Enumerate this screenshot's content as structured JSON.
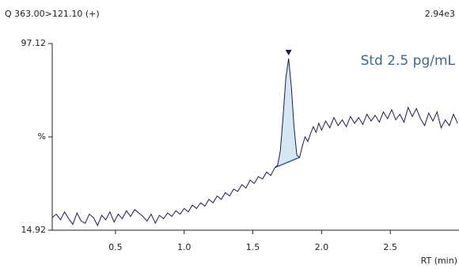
{
  "chart_data": {
    "type": "line",
    "title": "Q 363.00>121.10 (+)",
    "scale_label": "2.94e3",
    "annotation": "Std 2.5 pg/mL",
    "xlabel": "RT (min)",
    "color": "#1c1c4c",
    "peak": {
      "start": 1.66,
      "apex": 1.76,
      "end": 1.84,
      "fill": "#d4e8f4",
      "baseline_color": "#2b3fbf"
    },
    "xlim": [
      0.04,
      3.0
    ],
    "xticks": [
      0.5,
      {
        "value": 1.0,
        "label": "1.0"
      },
      1.5,
      {
        "value": 2.0,
        "label": "2.0"
      },
      2.5
    ],
    "ylim": [
      14.92,
      97.12
    ],
    "yticks": [
      14.92,
      {
        "value": 56.02,
        "label": "%"
      },
      97.12
    ],
    "x": [
      0.04,
      0.07,
      0.1,
      0.13,
      0.16,
      0.19,
      0.22,
      0.25,
      0.28,
      0.31,
      0.34,
      0.37,
      0.4,
      0.43,
      0.46,
      0.49,
      0.52,
      0.55,
      0.58,
      0.61,
      0.64,
      0.67,
      0.7,
      0.73,
      0.76,
      0.79,
      0.82,
      0.85,
      0.88,
      0.91,
      0.94,
      0.97,
      1.0,
      1.03,
      1.06,
      1.09,
      1.12,
      1.15,
      1.18,
      1.21,
      1.24,
      1.27,
      1.3,
      1.33,
      1.36,
      1.39,
      1.42,
      1.45,
      1.48,
      1.51,
      1.54,
      1.57,
      1.6,
      1.63,
      1.66,
      1.68,
      1.7,
      1.72,
      1.74,
      1.76,
      1.78,
      1.8,
      1.82,
      1.84,
      1.86,
      1.88,
      1.9,
      1.92,
      1.94,
      1.96,
      1.98,
      2.0,
      2.03,
      2.06,
      2.09,
      2.12,
      2.15,
      2.18,
      2.21,
      2.24,
      2.27,
      2.3,
      2.33,
      2.36,
      2.39,
      2.42,
      2.45,
      2.48,
      2.51,
      2.54,
      2.57,
      2.6,
      2.63,
      2.66,
      2.69,
      2.72,
      2.75,
      2.78,
      2.81,
      2.84,
      2.87,
      2.9,
      2.93,
      2.96,
      2.99
    ],
    "values": [
      20.5,
      22.0,
      19.5,
      23.0,
      20.0,
      17.5,
      22.5,
      19.0,
      18.0,
      22.0,
      20.5,
      17.0,
      21.5,
      19.5,
      23.0,
      18.5,
      22.0,
      20.0,
      23.5,
      21.0,
      24.0,
      22.5,
      21.0,
      19.0,
      22.0,
      18.0,
      21.5,
      20.0,
      22.5,
      21.0,
      23.5,
      22.0,
      24.5,
      23.0,
      26.0,
      24.5,
      27.0,
      25.5,
      28.5,
      27.0,
      30.0,
      28.5,
      31.5,
      30.0,
      33.0,
      32.0,
      35.0,
      33.5,
      37.0,
      35.5,
      38.5,
      37.5,
      40.5,
      39.0,
      42.5,
      43.5,
      50.0,
      65.0,
      82.0,
      90.5,
      78.0,
      60.0,
      48.0,
      47.0,
      52.0,
      56.0,
      54.0,
      57.5,
      60.5,
      58.0,
      62.0,
      59.0,
      63.0,
      60.0,
      64.5,
      61.0,
      63.5,
      60.5,
      65.0,
      62.0,
      64.5,
      61.5,
      66.0,
      63.0,
      65.5,
      62.5,
      67.0,
      64.0,
      68.0,
      63.5,
      66.0,
      62.5,
      69.0,
      65.0,
      68.5,
      64.0,
      61.0,
      66.5,
      63.0,
      67.0,
      60.0,
      63.5,
      61.0,
      66.0,
      62.0
    ]
  }
}
